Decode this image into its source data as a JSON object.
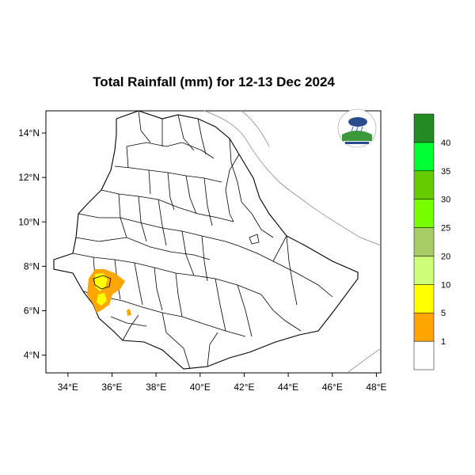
{
  "title": "Total Rainfall (mm) for 12-13 Dec 2024",
  "x_axis": {
    "ticks": [
      {
        "value": 34,
        "label": "34°E"
      },
      {
        "value": 36,
        "label": "36°E"
      },
      {
        "value": 38,
        "label": "38°E"
      },
      {
        "value": 40,
        "label": "40°E"
      },
      {
        "value": 42,
        "label": "42°E"
      },
      {
        "value": 44,
        "label": "44°E"
      },
      {
        "value": 46,
        "label": "46°E"
      },
      {
        "value": 48,
        "label": "48°E"
      }
    ],
    "range": [
      33.0,
      48.2
    ]
  },
  "y_axis": {
    "ticks": [
      {
        "value": 4,
        "label": "4°N"
      },
      {
        "value": 6,
        "label": "6°N"
      },
      {
        "value": 8,
        "label": "8°N"
      },
      {
        "value": 10,
        "label": "10°N"
      },
      {
        "value": 12,
        "label": "12°N"
      },
      {
        "value": 14,
        "label": "14°N"
      }
    ],
    "range": [
      3.2,
      15.0
    ]
  },
  "legend": {
    "bins": [
      {
        "color": "#ffffff",
        "label": ""
      },
      {
        "color": "#ffa500",
        "label": "1"
      },
      {
        "color": "#ffff00",
        "label": "5"
      },
      {
        "color": "#ccff77",
        "label": "10"
      },
      {
        "color": "#a8cc66",
        "label": "20"
      },
      {
        "color": "#77ff00",
        "label": "25"
      },
      {
        "color": "#66cc00",
        "label": "30"
      },
      {
        "color": "#00ff33",
        "label": "35"
      },
      {
        "color": "#228b22",
        "label": "40"
      }
    ]
  },
  "rainfall_areas": [
    {
      "band": "1-5",
      "color": "#ffa500",
      "region": "southwestern highlands"
    },
    {
      "band": "5-10",
      "color": "#ffff00",
      "region": "southwestern highlands core"
    }
  ],
  "logo_icon": "ethiopian-meteorology-institute-logo-icon"
}
